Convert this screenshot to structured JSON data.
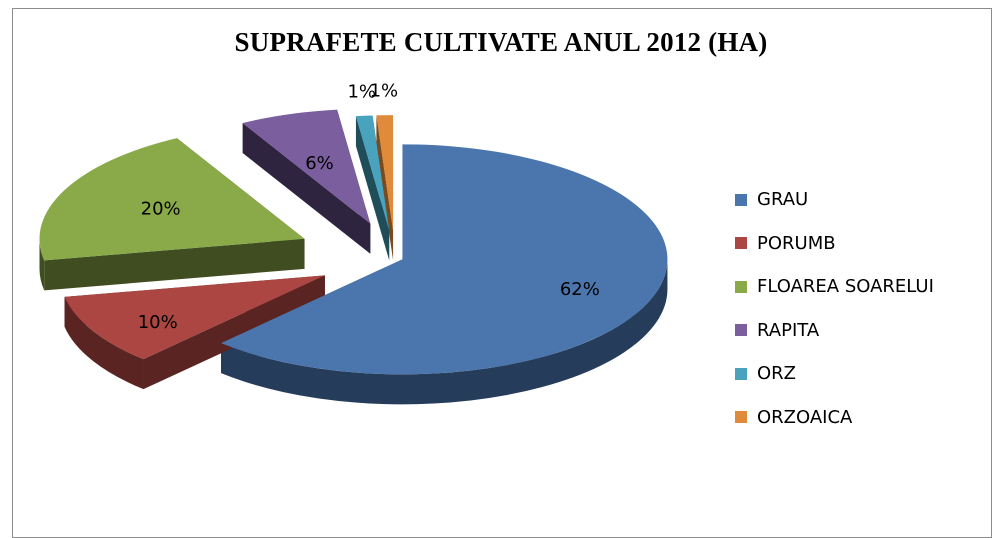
{
  "chart_data": {
    "type": "pie",
    "title": "SUPRAFETE CULTIVATE ANUL 2012 (HA)",
    "legend_position": "right",
    "slices": [
      {
        "label": "GRAU",
        "percent": 62,
        "value_label": "62%",
        "color": "#4a75ad",
        "side_color": "#263c5b"
      },
      {
        "label": "PORUMB",
        "percent": 10,
        "value_label": "10%",
        "color": "#ab4642",
        "side_color": "#5a2422"
      },
      {
        "label": "FLOAREA SOARELUI",
        "percent": 20,
        "value_label": "20%",
        "color": "#8aaa4a",
        "side_color": "#3f4d20"
      },
      {
        "label": "RAPITA",
        "percent": 6,
        "value_label": "6%",
        "color": "#7a5e9e",
        "side_color": "#2e2440"
      },
      {
        "label": "ORZ",
        "percent": 1,
        "value_label": "1%",
        "color": "#4aa3bd",
        "side_color": "#1f4d5a"
      },
      {
        "label": "ORZOAICA",
        "percent": 1,
        "value_label": "1%",
        "color": "#e08a3c",
        "side_color": "#7a4a1c"
      }
    ]
  }
}
